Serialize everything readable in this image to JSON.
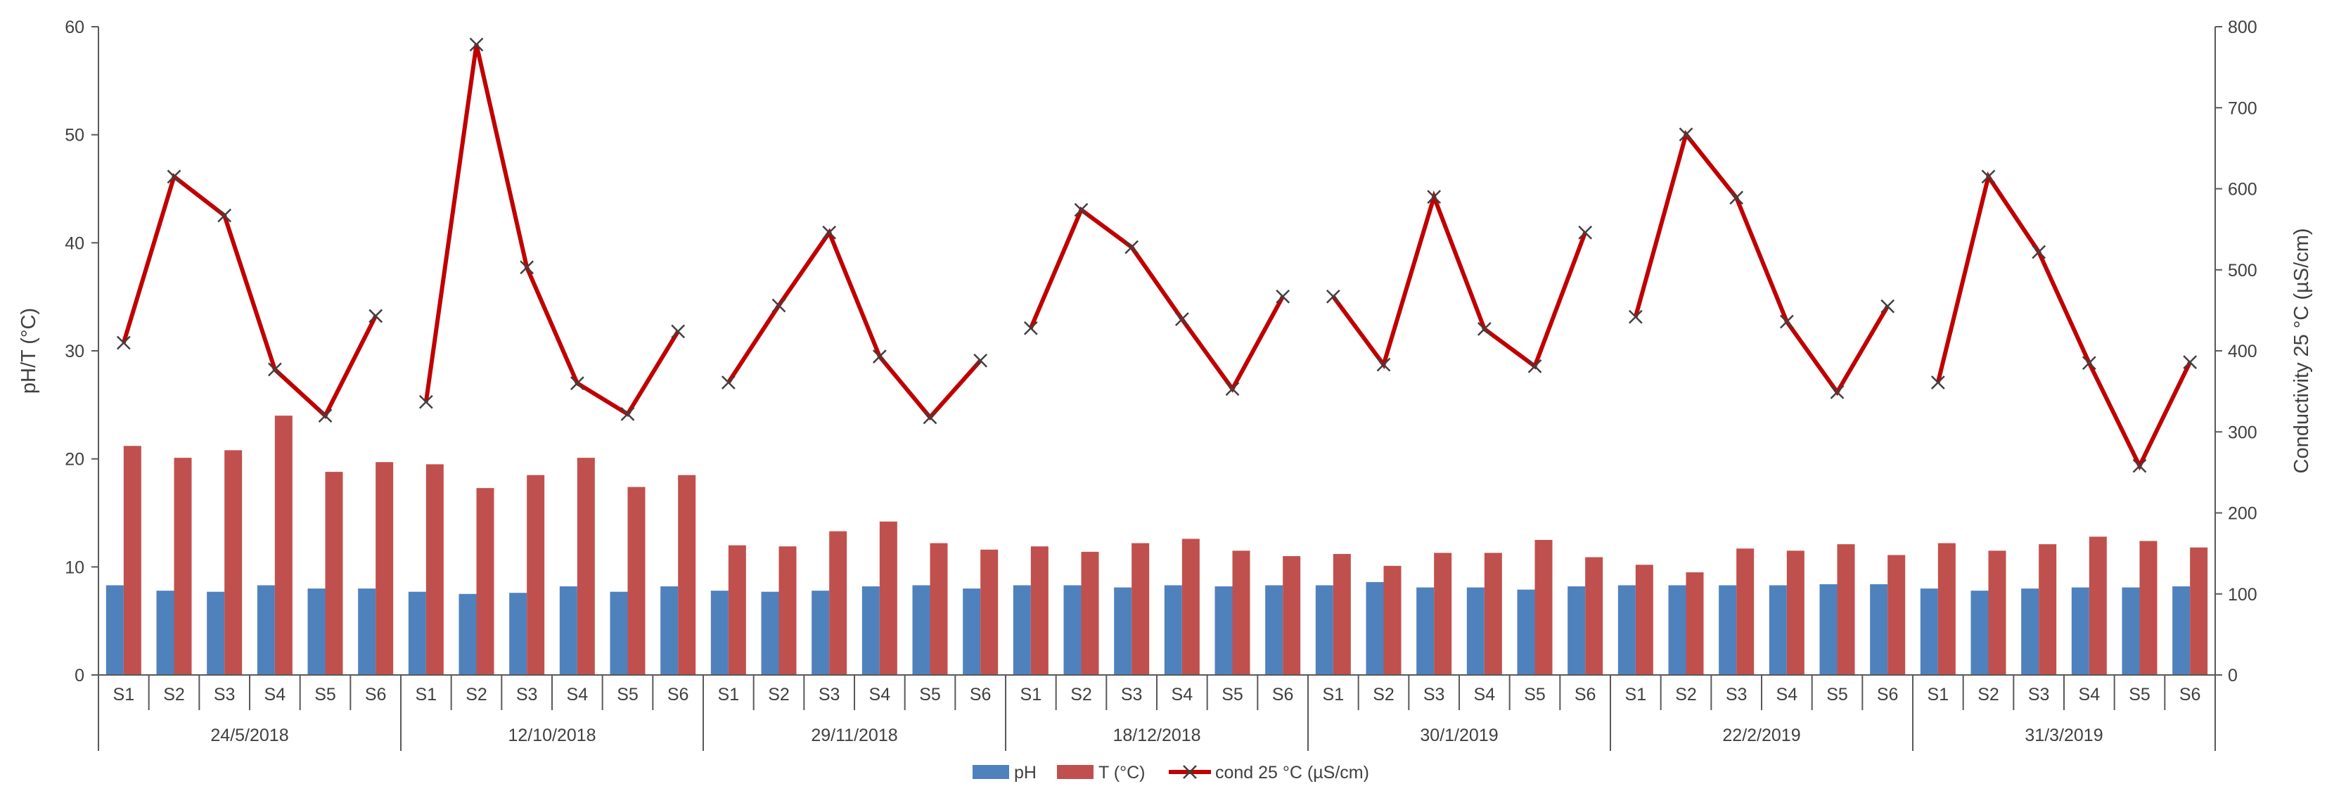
{
  "chart_data": {
    "type": "bar",
    "groups": [
      "24/5/2018",
      "12/10/2018",
      "29/11/2018",
      "18/12/2018",
      "30/1/2019",
      "22/2/2019",
      "31/3/2019"
    ],
    "sites": [
      "S1",
      "S2",
      "S3",
      "S4",
      "S5",
      "S6"
    ],
    "ylabel": "pH/T (°C)",
    "ylim": [
      0,
      60
    ],
    "yticks": [
      "0",
      "10",
      "20",
      "30",
      "40",
      "50",
      "60"
    ],
    "y2label": "Conductivity 25 °C (µS/cm)",
    "y2lim": [
      0,
      800
    ],
    "y2ticks": [
      "0",
      "100",
      "200",
      "300",
      "400",
      "500",
      "600",
      "700",
      "800"
    ],
    "grid": false,
    "legend_position": "bottom",
    "colors": {
      "ph": "#4f81bd",
      "temperature": "#c0504d",
      "conductivity": "#c00000",
      "marker": "#404040",
      "axis": "#595959"
    },
    "series": [
      {
        "name": "pH",
        "kind": "bar",
        "axis": "left",
        "values": [
          [
            8.3,
            7.8,
            7.7,
            8.3,
            8.0,
            8.0
          ],
          [
            7.7,
            7.5,
            7.6,
            8.2,
            7.7,
            8.2
          ],
          [
            7.8,
            7.7,
            7.8,
            8.2,
            8.3,
            8.0
          ],
          [
            8.3,
            8.3,
            8.1,
            8.3,
            8.2,
            8.3
          ],
          [
            8.3,
            8.6,
            8.1,
            8.1,
            7.9,
            8.2
          ],
          [
            8.3,
            8.3,
            8.3,
            8.3,
            8.4,
            8.4
          ],
          [
            8.0,
            7.8,
            8.0,
            8.1,
            8.1,
            8.2
          ]
        ]
      },
      {
        "name": "T (°C)",
        "kind": "bar",
        "axis": "left",
        "values": [
          [
            21.2,
            20.1,
            20.8,
            24.0,
            18.8,
            19.7
          ],
          [
            19.5,
            17.3,
            18.5,
            20.1,
            17.4,
            18.5
          ],
          [
            12.0,
            11.9,
            13.3,
            14.2,
            12.2,
            11.6
          ],
          [
            11.9,
            11.4,
            12.2,
            12.6,
            11.5,
            11.0
          ],
          [
            11.2,
            10.1,
            11.3,
            11.3,
            12.5,
            10.9
          ],
          [
            10.2,
            9.5,
            11.7,
            11.5,
            12.1,
            11.1
          ],
          [
            12.2,
            11.5,
            12.1,
            12.8,
            12.4,
            11.8
          ]
        ]
      },
      {
        "name": "cond 25 °C (µS/cm)",
        "kind": "line",
        "axis": "right",
        "marker": "x",
        "values": [
          [
            410,
            615,
            567,
            377,
            320,
            443
          ],
          [
            337,
            778,
            503,
            360,
            322,
            424
          ],
          [
            361,
            456,
            546,
            393,
            318,
            388
          ],
          [
            428,
            574,
            528,
            439,
            353,
            467
          ],
          [
            467,
            383,
            590,
            427,
            381,
            546
          ],
          [
            442,
            667,
            589,
            436,
            349,
            455
          ],
          [
            361,
            615,
            522,
            385,
            258,
            386
          ]
        ]
      }
    ]
  }
}
